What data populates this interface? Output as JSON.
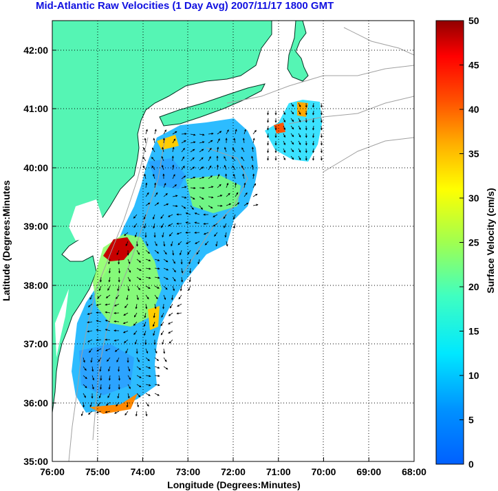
{
  "title": "Mid-Atlantic Raw Velocities (1 Day Avg) 2007/11/17 1800 GMT",
  "map": {
    "xlabel": "Longitude (Degrees:Minutes)",
    "ylabel": "Latitude (Degrees:Minutes",
    "x_ticks": [
      "76:00",
      "75:00",
      "74:00",
      "73:00",
      "72:00",
      "71:00",
      "70:00",
      "69:00",
      "68:00"
    ],
    "y_ticks": [
      "42:00",
      "41:00",
      "40:00",
      "39:00",
      "38:00",
      "37:00",
      "36:00",
      "35:00"
    ],
    "lon_range": [
      -76,
      -68
    ],
    "lat_range": [
      35,
      42.5
    ],
    "grid": "dotted",
    "land_color": "#55f5b4",
    "depth_contour_color": "#a0a0a0"
  },
  "colorbar": {
    "label": "Surface Velocity (cm/s)",
    "ticks": [
      "50",
      "45",
      "40",
      "35",
      "30",
      "25",
      "20",
      "15",
      "10",
      "5",
      "0"
    ],
    "range": [
      0,
      50
    ],
    "colormap": "jet"
  }
}
